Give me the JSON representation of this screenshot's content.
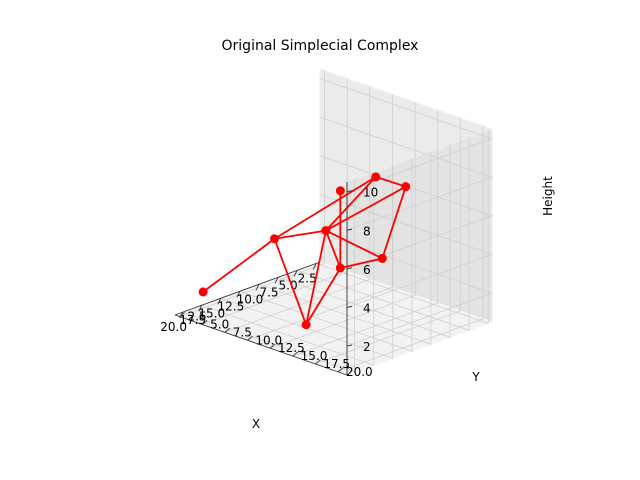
{
  "chart_data": {
    "type": "scatter3d",
    "title": "Original Simplecial Complex",
    "xlabel": "X",
    "ylabel": "Y",
    "zlabel": "Height",
    "xlim": [
      2,
      21
    ],
    "ylim": [
      2,
      21
    ],
    "zlim": [
      0.5,
      10.5
    ],
    "x_ticks": [
      "2.5",
      "5.0",
      "7.5",
      "10.0",
      "12.5",
      "15.0",
      "17.5",
      "20.0"
    ],
    "y_ticks": [
      "2.5",
      "5.0",
      "7.5",
      "10.0",
      "12.5",
      "15.0",
      "17.5",
      "20.0"
    ],
    "z_ticks": [
      "2",
      "4",
      "6",
      "8",
      "10"
    ],
    "grid": true,
    "color": "#ff0000",
    "points": [
      {
        "id": 0,
        "x": 3.0,
        "y": 9.0,
        "z": 6.2
      },
      {
        "id": 1,
        "x": 5.0,
        "y": 14.0,
        "z": 6.8
      },
      {
        "id": 2,
        "x": 9.5,
        "y": 3.3,
        "z": 3.0
      },
      {
        "id": 3,
        "x": 12.5,
        "y": 11.5,
        "z": 5.2
      },
      {
        "id": 4,
        "x": 18.5,
        "y": 3.0,
        "z": 1.5
      },
      {
        "id": 5,
        "x": 14.0,
        "y": 19.0,
        "z": 5.2
      },
      {
        "id": 6,
        "x": 19.0,
        "y": 14.8,
        "z": 1.8
      },
      {
        "id": 7,
        "x": 19.5,
        "y": 19.0,
        "z": 5.5
      },
      {
        "id": 8,
        "x": 19.5,
        "y": 19.0,
        "z": 9.5
      }
    ],
    "edges": [
      [
        1,
        3
      ],
      [
        1,
        5
      ],
      [
        0,
        1
      ],
      [
        0,
        3
      ],
      [
        3,
        5
      ],
      [
        0,
        2
      ],
      [
        2,
        3
      ],
      [
        2,
        4
      ],
      [
        2,
        6
      ],
      [
        3,
        6
      ],
      [
        3,
        7
      ],
      [
        5,
        7
      ],
      [
        6,
        7
      ],
      [
        7,
        8
      ]
    ]
  }
}
